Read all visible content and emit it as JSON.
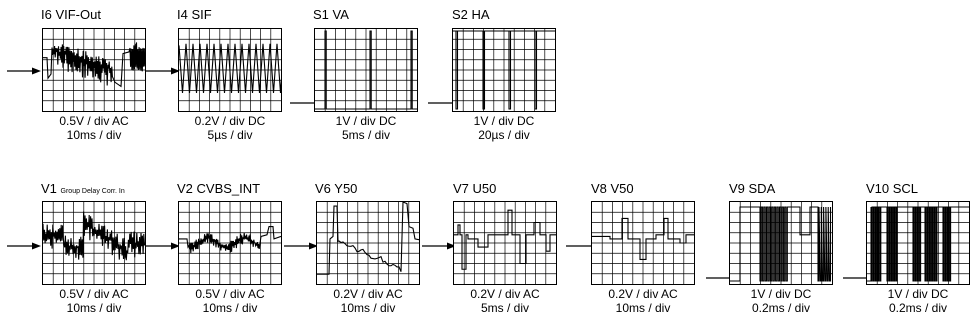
{
  "oscillograms": [
    {
      "id": "I6",
      "title": "I6 VIF-Out",
      "note": "",
      "line1": "0.5V / div AC",
      "line2": "10ms / div",
      "trace": "vif"
    },
    {
      "id": "I4",
      "title": "I4 SIF",
      "note": "",
      "line1": "0.2V / div DC",
      "line2": "5µs / div",
      "trace": "sif"
    },
    {
      "id": "S1",
      "title": "S1 VA",
      "note": "",
      "line1": "1V / div DC",
      "line2": "5ms / div",
      "trace": "va"
    },
    {
      "id": "S2",
      "title": "S2 HA",
      "note": "",
      "line1": "1V / div DC",
      "line2": "20µs / div",
      "trace": "ha"
    },
    {
      "id": "V1",
      "title": "V1",
      "note": "Group Delay Corr. In",
      "line1": "0.5V / div AC",
      "line2": "10ms / div",
      "trace": "gd"
    },
    {
      "id": "V2",
      "title": "V2 CVBS_INT",
      "note": "",
      "line1": "0.5V / div AC",
      "line2": "10ms / div",
      "trace": "cvbs"
    },
    {
      "id": "V6",
      "title": "V6 Y50",
      "note": "",
      "line1": "0.2V / div AC",
      "line2": "10ms / div",
      "trace": "y50"
    },
    {
      "id": "V7",
      "title": "V7 U50",
      "note": "",
      "line1": "0.2V / div AC",
      "line2": "5ms / div",
      "trace": "u50"
    },
    {
      "id": "V8",
      "title": "V8 V50",
      "note": "",
      "line1": "0.2V / div AC",
      "line2": "10ms / div",
      "trace": "v50"
    },
    {
      "id": "V9",
      "title": "V9 SDA",
      "note": "",
      "line1": "1V / div DC",
      "line2": "0.2ms / div",
      "trace": "sda"
    },
    {
      "id": "V10",
      "title": "V10 SCL",
      "note": "",
      "line1": "1V / div DC",
      "line2": "0.2ms / div",
      "trace": "scl"
    }
  ]
}
